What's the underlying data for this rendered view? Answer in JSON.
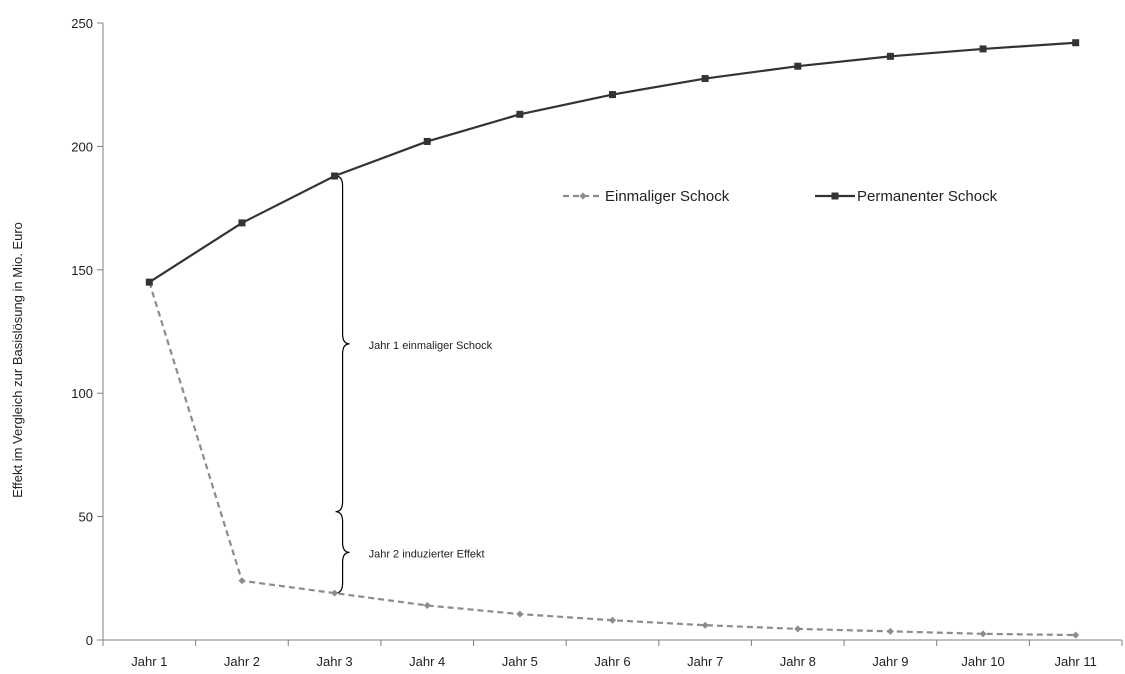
{
  "chart_data": {
    "type": "line",
    "title": "",
    "xlabel": "",
    "ylabel": "Effekt im Vergleich zur Basislösung in Mio. Euro",
    "categories": [
      "Jahr 1",
      "Jahr 2",
      "Jahr 3",
      "Jahr 4",
      "Jahr 5",
      "Jahr 6",
      "Jahr 7",
      "Jahr 8",
      "Jahr 9",
      "Jahr 10",
      "Jahr 11"
    ],
    "ylim": [
      0,
      250
    ],
    "yticks": [
      0,
      50,
      100,
      150,
      200,
      250
    ],
    "ytick_labels": [
      "0",
      "50",
      "100",
      "150",
      "200",
      "250"
    ],
    "grid": false,
    "legend_position": "right-upper",
    "series": [
      {
        "name": "Einmaliger Schock",
        "style": "dashed",
        "marker": "diamond",
        "color": "#8c8c8c",
        "values": [
          145,
          24,
          19,
          14,
          10.5,
          8,
          6,
          4.5,
          3.5,
          2.5,
          2
        ]
      },
      {
        "name": "Permanenter Schock",
        "style": "solid",
        "marker": "square",
        "color": "#333333",
        "values": [
          145,
          169,
          188,
          202,
          213,
          221,
          227.5,
          232.5,
          236.5,
          239.5,
          242
        ]
      }
    ],
    "annotations": [
      {
        "text": "Jahr 1 einmaliger Schock",
        "category": "Jahr 3",
        "y_from": 52,
        "y_to": 188
      },
      {
        "text": "Jahr 2 induzierter Effekt",
        "category": "Jahr 3",
        "y_from": 19,
        "y_to": 52
      }
    ]
  }
}
